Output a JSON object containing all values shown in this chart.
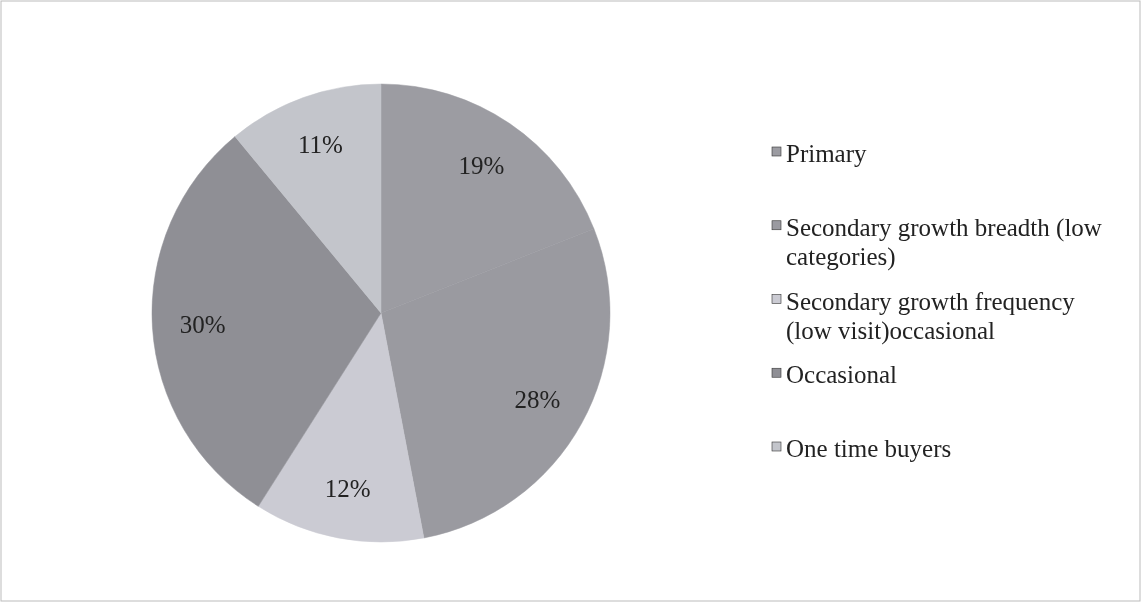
{
  "chart_data": {
    "type": "pie",
    "categories": [
      "Primary",
      "Secondary growth breadth (low categories)",
      "Secondary growth frequency (low visit)occasional",
      "Occasional",
      "One time buyers"
    ],
    "values": [
      19,
      28,
      12,
      30,
      11
    ],
    "colors": [
      "#9c9ca2",
      "#9a9aa0",
      "#cbcbd3",
      "#8f8f95",
      "#c3c5cb"
    ],
    "value_labels": [
      "19%",
      "28%",
      "12%",
      "30%",
      "11%"
    ],
    "legend": "right"
  }
}
